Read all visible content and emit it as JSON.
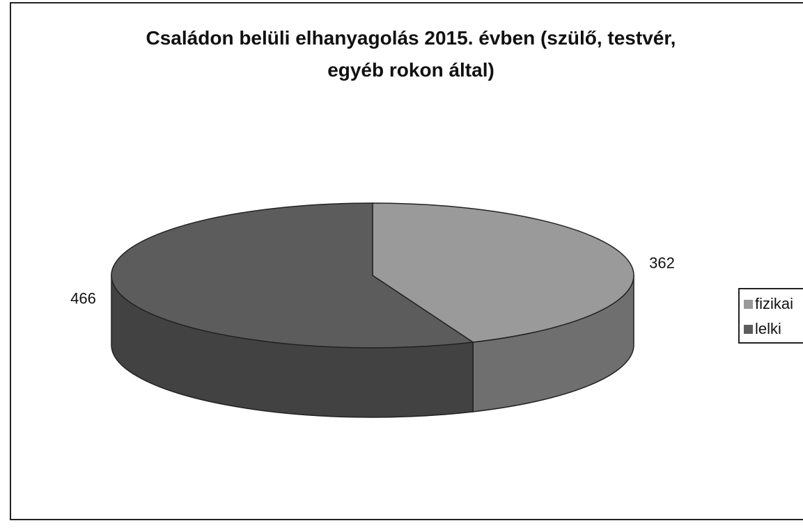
{
  "chart_data": {
    "type": "pie",
    "title": "Családon belüli elhanyagolás 2015. évben (szülő, testvér, egyéb rokon által)",
    "title_lines": [
      "Családon belüli elhanyagolás 2015. évben (szülő, testvér,",
      "egyéb rokon által)"
    ],
    "categories": [
      "fizikai",
      "lelki"
    ],
    "values": [
      362,
      466
    ],
    "data_labels": [
      "362",
      "466"
    ],
    "three_d": true,
    "legend_placement": "right",
    "colors": {
      "fizikai": "#9a9a9a",
      "lelki": "#5c5c5c"
    }
  }
}
